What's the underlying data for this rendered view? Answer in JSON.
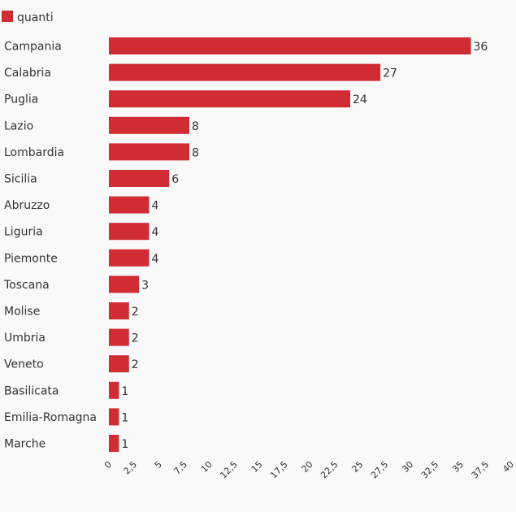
{
  "chart_data": {
    "type": "bar",
    "orientation": "horizontal",
    "legend": {
      "position": "top-left",
      "entries": [
        "quanti"
      ]
    },
    "series": [
      {
        "name": "quanti",
        "color": "#d12c33",
        "values": [
          36,
          27,
          24,
          8,
          8,
          6,
          4,
          4,
          4,
          3,
          2,
          2,
          2,
          1,
          1,
          1
        ]
      }
    ],
    "categories": [
      "Campania",
      "Calabria",
      "Puglia",
      "Lazio",
      "Lombardia",
      "Sicilia",
      "Abruzzo",
      "Liguria",
      "Piemonte",
      "Toscana",
      "Molise",
      "Umbria",
      "Veneto",
      "Basilicata",
      "Emilia-Romagna",
      "Marche"
    ],
    "value_labels": [
      "36",
      "27",
      "24",
      "8",
      "8",
      "6",
      "4",
      "4",
      "4",
      "3",
      "2",
      "2",
      "2",
      "1",
      "1",
      "1"
    ],
    "xlim": [
      0,
      40
    ],
    "x_ticks": [
      0,
      2.5,
      5,
      7.5,
      10,
      12.5,
      15,
      17.5,
      20,
      22.5,
      25,
      27.5,
      30,
      32.5,
      35,
      37.5,
      40
    ],
    "x_tick_labels": [
      "0",
      "2,5",
      "5",
      "7,5",
      "10",
      "12,5",
      "15",
      "17,5",
      "20",
      "22,5",
      "25",
      "27,5",
      "30",
      "32,5",
      "35",
      "37,5",
      "40"
    ],
    "grid": false
  }
}
